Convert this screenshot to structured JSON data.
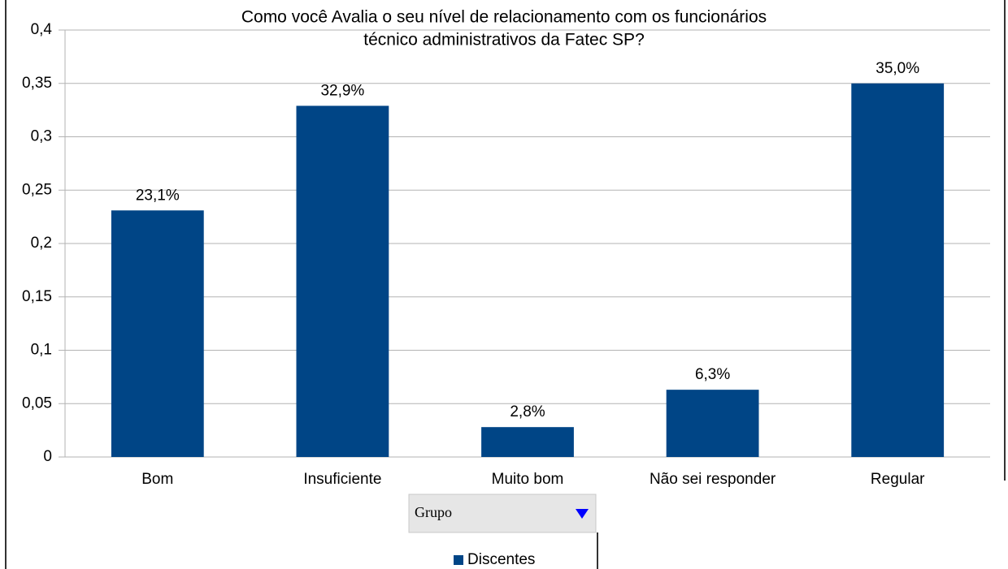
{
  "chart_data": {
    "type": "bar",
    "title": [
      "Como você Avalia o seu nível de relacionamento com os funcionários",
      "técnico administrativos da Fatec SP?"
    ],
    "categories": [
      "Bom",
      "Insuficiente",
      "Muito bom",
      "Não sei responder",
      "Regular"
    ],
    "series": [
      {
        "name": "Discentes",
        "color": "#004586",
        "values": [
          0.231,
          0.329,
          0.028,
          0.063,
          0.35
        ],
        "value_labels": [
          "23,1%",
          "32,9%",
          "2,8%",
          "6,3%",
          "35,0%"
        ]
      }
    ],
    "ylim": [
      0,
      0.4
    ],
    "yticks": [
      0,
      {
        "value": 0.05,
        "label": "0,05"
      },
      {
        "value": 0.1,
        "label": "0,1"
      },
      {
        "value": 0.15,
        "label": "0,15"
      },
      {
        "value": 0.2,
        "label": "0,2"
      },
      {
        "value": 0.25,
        "label": "0,25"
      },
      {
        "value": 0.3,
        "label": "0,3"
      },
      {
        "value": 0.35,
        "label": "0,35"
      },
      {
        "value": 0.4,
        "label": "0,4"
      }
    ],
    "grid": true,
    "legend": "bottom"
  },
  "controls": {
    "field_button": "Grupo"
  }
}
